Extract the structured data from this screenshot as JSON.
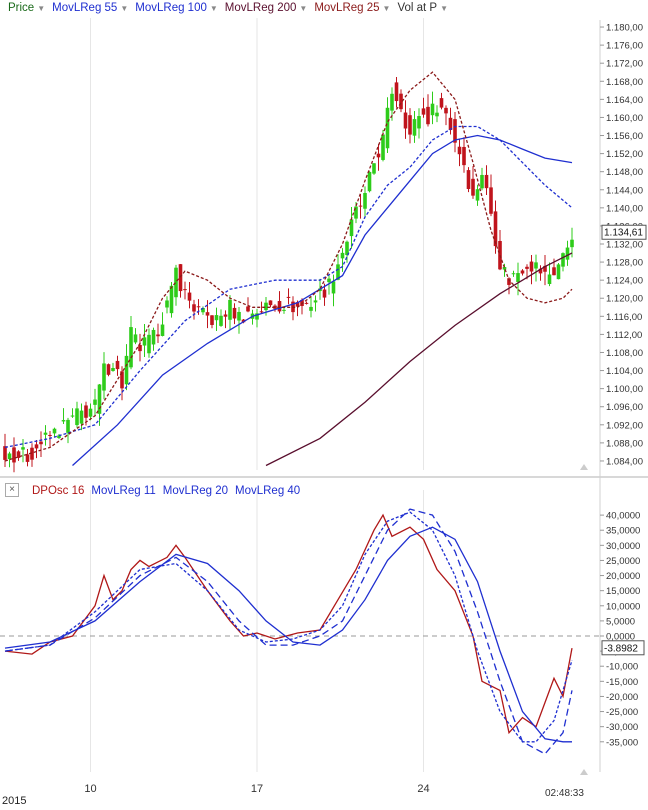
{
  "colors": {
    "up": "#2ecc1a",
    "down": "#c0141c",
    "price_line": "#d00000",
    "reg55": "#1f2fd0",
    "reg100": "#1f2fd0",
    "reg200": "#5a0f2e",
    "reg25": "#8b1a1a",
    "osc": "#b01818",
    "grid": "#e6e6e6",
    "zero": "#999999",
    "axis_text": "#333333"
  },
  "top_legend": [
    {
      "label": "Price",
      "color": "#1a6a1a"
    },
    {
      "label": "MovLReg 55",
      "color": "#1f2fd0"
    },
    {
      "label": "MovLReg 100",
      "color": "#1f2fd0"
    },
    {
      "label": "MovLReg 200",
      "color": "#5a0f2e"
    },
    {
      "label": "MovLReg 25",
      "color": "#8b1a1a"
    },
    {
      "label": "Vol at P",
      "color": "#333333"
    }
  ],
  "bottom_legend": [
    {
      "label": "DPOsc 16",
      "color": "#b01818"
    },
    {
      "label": "MovLReg 11",
      "color": "#1f2fd0"
    },
    {
      "label": "MovLReg 20",
      "color": "#1f2fd0"
    },
    {
      "label": "MovLReg 40",
      "color": "#1f2fd0"
    }
  ],
  "close_box_label": "×",
  "time_label": "02:48:33",
  "year_label": "2015",
  "chart_data": [
    {
      "type": "candlestick",
      "title": "",
      "xlabel": "",
      "ylabel": "",
      "ylim": [
        1.082,
        1.182
      ],
      "y_tick_values": [
        1.084,
        1.088,
        1.092,
        1.096,
        1.1,
        1.104,
        1.108,
        1.112,
        1.116,
        1.12,
        1.124,
        1.128,
        1.132,
        1.136,
        1.14,
        1.144,
        1.148,
        1.152,
        1.156,
        1.16,
        1.164,
        1.168,
        1.172,
        1.176,
        1.18
      ],
      "y_tick_labels": [
        "1.084,00",
        "1.088,00",
        "1.092,00",
        "1.096,00",
        "1.100,00",
        "1.104,00",
        "1.108,00",
        "1.112,00",
        "1.116,00",
        "1.120,00",
        "1.124,00",
        "1.128,00",
        "1.132,00",
        "1.136,00",
        "1.140,00",
        "1.144,00",
        "1.148,00",
        "1.152,00",
        "1.156,00",
        "1.160,00",
        "1.164,00",
        "1.168,00",
        "1.172,00",
        "1.176,00",
        "1.180,00"
      ],
      "current_price_label": "1.134,61",
      "current_price": 1.1346,
      "x_ticks": [
        {
          "label": "10",
          "index": 19
        },
        {
          "label": "17",
          "index": 56
        },
        {
          "label": "24",
          "index": 93
        }
      ],
      "bar_count": 127,
      "price_path": [
        [
          0,
          1.086
        ],
        [
          5,
          1.085
        ],
        [
          8,
          1.088
        ],
        [
          12,
          1.091
        ],
        [
          16,
          1.094
        ],
        [
          20,
          1.096
        ],
        [
          22,
          1.104
        ],
        [
          24,
          1.106
        ],
        [
          26,
          1.101
        ],
        [
          28,
          1.112
        ],
        [
          30,
          1.109
        ],
        [
          33,
          1.111
        ],
        [
          35,
          1.116
        ],
        [
          37,
          1.121
        ],
        [
          38,
          1.126
        ],
        [
          40,
          1.121
        ],
        [
          42,
          1.118
        ],
        [
          44,
          1.116
        ],
        [
          47,
          1.115
        ],
        [
          50,
          1.118
        ],
        [
          52,
          1.116
        ],
        [
          55,
          1.117
        ],
        [
          58,
          1.118
        ],
        [
          62,
          1.119
        ],
        [
          65,
          1.118
        ],
        [
          68,
          1.119
        ],
        [
          70,
          1.121
        ],
        [
          72,
          1.123
        ],
        [
          74,
          1.128
        ],
        [
          76,
          1.133
        ],
        [
          78,
          1.139
        ],
        [
          80,
          1.142
        ],
        [
          82,
          1.15
        ],
        [
          84,
          1.155
        ],
        [
          86,
          1.166
        ],
        [
          88,
          1.163
        ],
        [
          90,
          1.156
        ],
        [
          92,
          1.161
        ],
        [
          94,
          1.16
        ],
        [
          96,
          1.163
        ],
        [
          98,
          1.161
        ],
        [
          100,
          1.155
        ],
        [
          102,
          1.15
        ],
        [
          104,
          1.142
        ],
        [
          106,
          1.148
        ],
        [
          108,
          1.139
        ],
        [
          110,
          1.128
        ],
        [
          112,
          1.124
        ],
        [
          114,
          1.126
        ],
        [
          116,
          1.128
        ],
        [
          118,
          1.127
        ],
        [
          120,
          1.125
        ],
        [
          122,
          1.126
        ],
        [
          124,
          1.129
        ],
        [
          126,
          1.1346
        ]
      ],
      "series": [
        {
          "name": "MovLReg 55",
          "dash": "none",
          "values": [
            [
              15,
              1.083
            ],
            [
              25,
              1.092
            ],
            [
              35,
              1.103
            ],
            [
              45,
              1.11
            ],
            [
              55,
              1.116
            ],
            [
              65,
              1.119
            ],
            [
              75,
              1.125
            ],
            [
              80,
              1.134
            ],
            [
              85,
              1.14
            ],
            [
              90,
              1.146
            ],
            [
              95,
              1.152
            ],
            [
              100,
              1.155
            ],
            [
              105,
              1.156
            ],
            [
              110,
              1.155
            ],
            [
              115,
              1.153
            ],
            [
              120,
              1.151
            ],
            [
              126,
              1.15
            ]
          ]
        },
        {
          "name": "MovLReg 100",
          "dash": "3,2",
          "values": [
            [
              0,
              1.087
            ],
            [
              10,
              1.089
            ],
            [
              20,
              1.092
            ],
            [
              30,
              1.104
            ],
            [
              40,
              1.115
            ],
            [
              50,
              1.122
            ],
            [
              60,
              1.124
            ],
            [
              70,
              1.124
            ],
            [
              75,
              1.127
            ],
            [
              80,
              1.138
            ],
            [
              85,
              1.145
            ],
            [
              90,
              1.149
            ],
            [
              95,
              1.155
            ],
            [
              100,
              1.158
            ],
            [
              105,
              1.158
            ],
            [
              110,
              1.155
            ],
            [
              115,
              1.15
            ],
            [
              120,
              1.145
            ],
            [
              126,
              1.14
            ]
          ]
        },
        {
          "name": "MovLReg 200",
          "dash": "none",
          "values": [
            [
              58,
              1.083
            ],
            [
              70,
              1.089
            ],
            [
              80,
              1.097
            ],
            [
              90,
              1.106
            ],
            [
              100,
              1.114
            ],
            [
              110,
              1.121
            ],
            [
              115,
              1.124
            ],
            [
              120,
              1.127
            ],
            [
              126,
              1.13
            ]
          ]
        },
        {
          "name": "MovLReg 25",
          "dash": "3,2",
          "values": [
            [
              0,
              1.084
            ],
            [
              10,
              1.087
            ],
            [
              20,
              1.094
            ],
            [
              30,
              1.11
            ],
            [
              35,
              1.12
            ],
            [
              40,
              1.126
            ],
            [
              45,
              1.124
            ],
            [
              50,
              1.12
            ],
            [
              55,
              1.118
            ],
            [
              60,
              1.118
            ],
            [
              65,
              1.118
            ],
            [
              70,
              1.122
            ],
            [
              75,
              1.132
            ],
            [
              80,
              1.146
            ],
            [
              85,
              1.159
            ],
            [
              90,
              1.166
            ],
            [
              95,
              1.17
            ],
            [
              100,
              1.164
            ],
            [
              104,
              1.15
            ],
            [
              108,
              1.135
            ],
            [
              112,
              1.124
            ],
            [
              116,
              1.12
            ],
            [
              120,
              1.119
            ],
            [
              124,
              1.12
            ],
            [
              126,
              1.122
            ]
          ]
        }
      ]
    },
    {
      "type": "line",
      "title": "",
      "xlabel": "",
      "ylabel": "",
      "ylim": [
        -45000,
        45000
      ],
      "y_tick_values": [
        40000,
        35000,
        30000,
        25000,
        20000,
        15000,
        10000,
        5000,
        0,
        -5000,
        -10000,
        -15000,
        -20000,
        -25000,
        -30000,
        -35000
      ],
      "y_tick_labels": [
        "40,0000",
        "35,0000",
        "30,0000",
        "25,0000",
        "20,0000",
        "15,0000",
        "10,0000",
        "5,0000",
        "0,0000",
        "-5,0000",
        "-10,000",
        "-15,000",
        "-20,000",
        "-25,000",
        "-30,000",
        "-35,000"
      ],
      "current_value_label": "-3.8982",
      "current_value": -3898.2,
      "series": [
        {
          "name": "DPOsc 16",
          "dash": "none",
          "values": [
            [
              0,
              -5000
            ],
            [
              6,
              -6000
            ],
            [
              10,
              -2000
            ],
            [
              15,
              0
            ],
            [
              20,
              10000
            ],
            [
              22,
              20000
            ],
            [
              24,
              12000
            ],
            [
              26,
              15000
            ],
            [
              28,
              22000
            ],
            [
              30,
              25000
            ],
            [
              32,
              23000
            ],
            [
              36,
              26000
            ],
            [
              38,
              30000
            ],
            [
              40,
              26000
            ],
            [
              45,
              15000
            ],
            [
              50,
              5000
            ],
            [
              53,
              0
            ],
            [
              56,
              1000
            ],
            [
              60,
              -1000
            ],
            [
              65,
              1000
            ],
            [
              70,
              2000
            ],
            [
              74,
              12000
            ],
            [
              78,
              22000
            ],
            [
              82,
              35000
            ],
            [
              84,
              40000
            ],
            [
              86,
              33000
            ],
            [
              90,
              36000
            ],
            [
              93,
              32000
            ],
            [
              96,
              22000
            ],
            [
              100,
              15000
            ],
            [
              104,
              0
            ],
            [
              106,
              -15000
            ],
            [
              110,
              -18000
            ],
            [
              112,
              -32000
            ],
            [
              115,
              -27000
            ],
            [
              118,
              -30000
            ],
            [
              120,
              -22000
            ],
            [
              122,
              -14000
            ],
            [
              124,
              -20000
            ],
            [
              126,
              -4000
            ]
          ]
        },
        {
          "name": "MovLReg 11",
          "dash": "3,2",
          "values": [
            [
              0,
              -5000
            ],
            [
              10,
              -3000
            ],
            [
              20,
              8000
            ],
            [
              30,
              22000
            ],
            [
              38,
              24000
            ],
            [
              45,
              15000
            ],
            [
              52,
              2000
            ],
            [
              58,
              -2000
            ],
            [
              64,
              -1000
            ],
            [
              70,
              2000
            ],
            [
              75,
              10000
            ],
            [
              80,
              27000
            ],
            [
              85,
              38000
            ],
            [
              90,
              41000
            ],
            [
              95,
              35000
            ],
            [
              100,
              20000
            ],
            [
              105,
              -5000
            ],
            [
              110,
              -25000
            ],
            [
              115,
              -35000
            ],
            [
              118,
              -35000
            ],
            [
              122,
              -28000
            ],
            [
              126,
              -8000
            ]
          ]
        },
        {
          "name": "MovLReg 20",
          "dash": "7,4",
          "values": [
            [
              0,
              -5000
            ],
            [
              10,
              -3000
            ],
            [
              20,
              6000
            ],
            [
              30,
              20000
            ],
            [
              38,
              26000
            ],
            [
              45,
              18000
            ],
            [
              52,
              5000
            ],
            [
              58,
              -3000
            ],
            [
              64,
              -3000
            ],
            [
              70,
              0
            ],
            [
              75,
              5000
            ],
            [
              80,
              20000
            ],
            [
              85,
              35000
            ],
            [
              90,
              42000
            ],
            [
              95,
              40000
            ],
            [
              100,
              28000
            ],
            [
              105,
              8000
            ],
            [
              110,
              -15000
            ],
            [
              115,
              -35000
            ],
            [
              120,
              -39000
            ],
            [
              124,
              -32000
            ],
            [
              126,
              -18000
            ]
          ]
        },
        {
          "name": "MovLReg 40",
          "dash": "none",
          "values": [
            [
              0,
              -4000
            ],
            [
              10,
              -2000
            ],
            [
              20,
              5000
            ],
            [
              30,
              18000
            ],
            [
              38,
              27000
            ],
            [
              45,
              24000
            ],
            [
              52,
              15000
            ],
            [
              58,
              5000
            ],
            [
              64,
              -2000
            ],
            [
              70,
              -3000
            ],
            [
              75,
              2000
            ],
            [
              80,
              12000
            ],
            [
              85,
              25000
            ],
            [
              90,
              33000
            ],
            [
              95,
              36000
            ],
            [
              100,
              32000
            ],
            [
              105,
              18000
            ],
            [
              110,
              -5000
            ],
            [
              115,
              -25000
            ],
            [
              120,
              -34000
            ],
            [
              124,
              -35000
            ],
            [
              126,
              -35000
            ]
          ]
        }
      ]
    }
  ]
}
